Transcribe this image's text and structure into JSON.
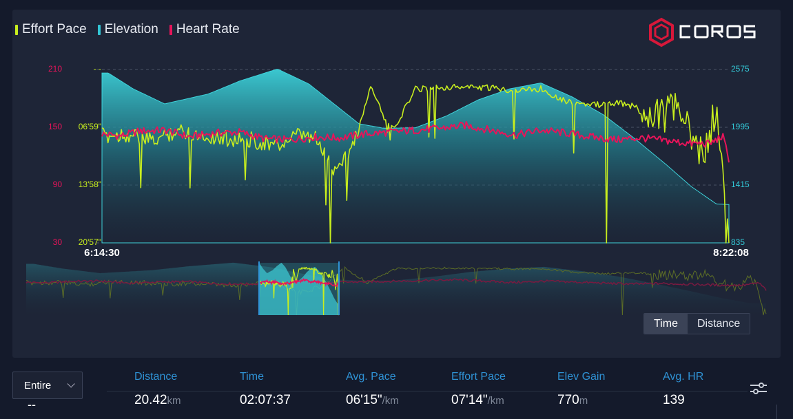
{
  "brand": {
    "logo_text": "COROS"
  },
  "legend": [
    {
      "label": "Effort Pace",
      "color": "#c8ee1e"
    },
    {
      "label": "Elevation",
      "color": "#33c7d6"
    },
    {
      "label": "Heart Rate",
      "color": "#e8145a"
    }
  ],
  "axes": {
    "hr_ticks": [
      "210",
      "150",
      "90",
      "30"
    ],
    "pace_ticks": [
      "- -",
      "06'59\"",
      "13'58\"",
      "20'57\""
    ],
    "elev_ticks": [
      "2575",
      "1995",
      "1415",
      "835"
    ],
    "start_time": "6:14:30",
    "end_time": "8:22:08"
  },
  "toggle": {
    "time_label": "Time",
    "distance_label": "Distance",
    "active": "time"
  },
  "summary": {
    "range_label": "Entire",
    "range_value": "--",
    "stats": [
      {
        "label": "Distance",
        "value": "20.42",
        "unit": "km"
      },
      {
        "label": "Time",
        "value": "02:07:37",
        "unit": ""
      },
      {
        "label": "Avg. Pace",
        "value": "06'15\"",
        "unit": "/km"
      },
      {
        "label": "Effort Pace",
        "value": "07'14\"",
        "unit": "/km"
      },
      {
        "label": "Elev Gain",
        "value": "770",
        "unit": "m"
      },
      {
        "label": "Avg. HR",
        "value": "139",
        "unit": ""
      }
    ]
  },
  "chart_data": {
    "type": "line",
    "x_range": [
      "6:14:30",
      "8:22:08"
    ],
    "hr_ylim": [
      30,
      210
    ],
    "elev_ylim": [
      835,
      2575
    ],
    "pace_ylim_seconds": [
      0,
      1257
    ],
    "grid": true,
    "series": [
      {
        "name": "Elevation",
        "color": "#33c7d6",
        "t": [
          0,
          0.01,
          0.05,
          0.1,
          0.17,
          0.22,
          0.28,
          0.33,
          0.37,
          0.41,
          0.45,
          0.5,
          0.55,
          0.6,
          0.65,
          0.7,
          0.75,
          0.8,
          0.85,
          0.9,
          0.94,
          0.98,
          1.0
        ],
        "values": [
          2540,
          2540,
          2380,
          2230,
          2330,
          2460,
          2580,
          2430,
          2230,
          2030,
          1985,
          1990,
          2110,
          2270,
          2380,
          2440,
          2300,
          2120,
          1880,
          1620,
          1400,
          1225,
          1220
        ]
      },
      {
        "name": "Heart Rate",
        "color": "#e8145a",
        "t": [
          0,
          0.03,
          0.06,
          0.1,
          0.14,
          0.18,
          0.22,
          0.26,
          0.3,
          0.34,
          0.38,
          0.42,
          0.46,
          0.5,
          0.54,
          0.58,
          0.62,
          0.66,
          0.7,
          0.74,
          0.78,
          0.82,
          0.86,
          0.9,
          0.94,
          0.97,
          0.99,
          1.0
        ],
        "values": [
          143,
          141,
          146,
          147,
          140,
          144,
          145,
          138,
          137,
          140,
          139,
          143,
          145,
          147,
          149,
          152,
          147,
          142,
          147,
          144,
          140,
          137,
          139,
          136,
          133,
          133,
          141,
          117
        ]
      },
      {
        "name": "Effort Pace",
        "color": "#c8ee1e",
        "t": [
          0,
          0.04,
          0.08,
          0.12,
          0.16,
          0.2,
          0.24,
          0.28,
          0.31,
          0.34,
          0.37,
          0.4,
          0.43,
          0.46,
          0.5,
          0.54,
          0.58,
          0.62,
          0.66,
          0.7,
          0.74,
          0.78,
          0.82,
          0.86,
          0.88,
          0.9,
          0.92,
          0.94,
          0.96,
          0.98,
          1.0
        ],
        "values": [
          480,
          470,
          520,
          440,
          480,
          500,
          510,
          560,
          480,
          500,
          720,
          560,
          110,
          480,
          140,
          130,
          125,
          135,
          150,
          140,
          230,
          260,
          240,
          280,
          310,
          330,
          250,
          520,
          620,
          270,
          1250
        ]
      }
    ]
  }
}
